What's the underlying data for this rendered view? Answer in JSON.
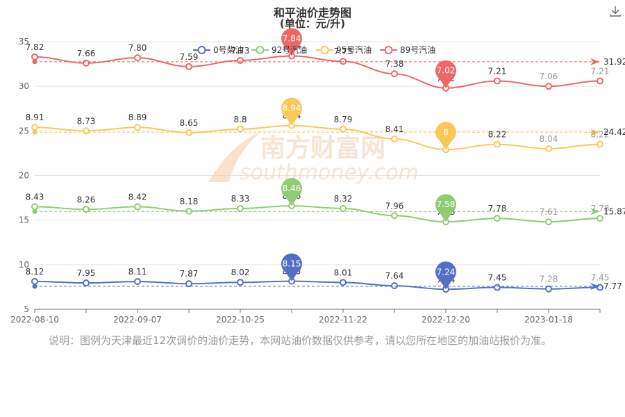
{
  "header": {
    "title": "和平油价走势图",
    "subtitle": "(单位：元/升)",
    "download_icon": "download-icon"
  },
  "watermark": {
    "text": "南方财富网",
    "url_text": "southmoney.com"
  },
  "note": "说明：图例为天津最近12次调价的油价走势，本网站油价数据仅供参考，请以您所在地区的加油站报价为准。",
  "chart_data": {
    "type": "line",
    "title": "和平油价走势图",
    "subtitle": "(单位：元/升)",
    "xlabel": "",
    "ylabel": "",
    "ylim": [
      5,
      35
    ],
    "y_ticks": [
      5,
      10,
      15,
      20,
      25,
      30,
      35
    ],
    "x_tick_labels": [
      "2022-08-10",
      "2022-09-07",
      "2022-10-25",
      "2022-11-22",
      "2022-12-20",
      "2023-01-18"
    ],
    "grid": true,
    "legend_position": "top",
    "series": [
      {
        "name": "0号柴油",
        "color": "#5470c6",
        "plot_values": [
          8.12,
          7.95,
          8.11,
          7.87,
          8.02,
          8.15,
          8.01,
          7.64,
          7.24,
          7.45,
          7.28,
          7.45
        ],
        "labels": [
          "8.12",
          "7.95",
          "8.11",
          "7.87",
          "8.02",
          "8.15",
          "8.01",
          "7.64",
          "7.24",
          "7.45",
          "7.28",
          "7.45"
        ],
        "max_pin": "8.15",
        "min_pin": "7.24",
        "avg": "7.77"
      },
      {
        "name": "92号汽油",
        "color": "#91cc75",
        "plot_values": [
          16.5,
          16.2,
          16.5,
          16.0,
          16.3,
          16.6,
          16.3,
          15.5,
          14.8,
          15.2,
          14.8,
          15.2
        ],
        "labels": [
          "8.43",
          "8.26",
          "8.42",
          "8.18",
          "8.33",
          "8.46",
          "8.32",
          "7.96",
          "7.58",
          "7.78",
          "7.61",
          "7.78"
        ],
        "max_pin": "8.46",
        "min_pin": "7.58",
        "avg": "15.87"
      },
      {
        "name": "95号汽油",
        "color": "#fac858",
        "plot_values": [
          25.4,
          25.0,
          25.4,
          24.8,
          25.2,
          25.6,
          25.2,
          24.1,
          22.9,
          23.5,
          23.0,
          23.5
        ],
        "labels": [
          "8.91",
          "8.73",
          "8.89",
          "8.65",
          "8.8",
          "8.94",
          "8.79",
          "8.41",
          "8",
          "8.22",
          "8.04",
          "8.22"
        ],
        "max_pin": "8.94",
        "min_pin": "8",
        "avg": "24.42"
      },
      {
        "name": "89号汽油",
        "color": "#ee6666",
        "plot_values": [
          33.3,
          32.6,
          33.2,
          32.2,
          32.9,
          33.4,
          32.8,
          31.4,
          29.8,
          30.6,
          30.0,
          30.6
        ],
        "labels": [
          "7.82",
          "7.66",
          "7.80",
          "7.59",
          "7.73",
          "7.84",
          "7.73",
          "7.38",
          "7.02",
          "7.21",
          "7.06",
          "7.21"
        ],
        "max_pin": "7.84",
        "min_pin": "7.02",
        "avg": "31.92"
      }
    ]
  }
}
